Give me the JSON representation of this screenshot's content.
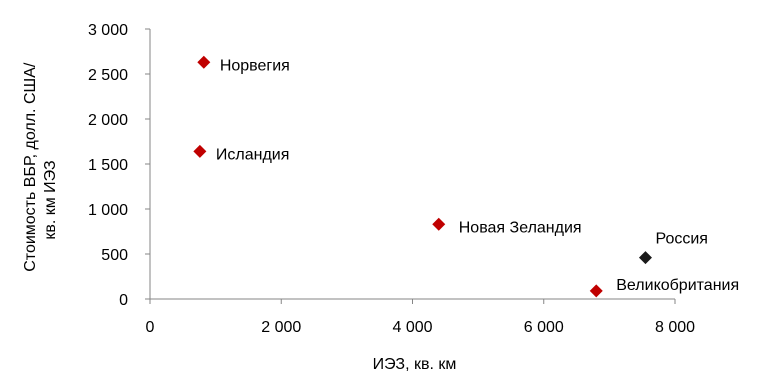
{
  "chart_data": {
    "type": "scatter",
    "xlabel": "ИЭЗ, кв. км",
    "ylabel_lines": [
      "Стоимость ВБР, долл. США/",
      "кв. км ИЭЗ"
    ],
    "xlim": [
      0,
      8000
    ],
    "ylim": [
      0,
      3000
    ],
    "x_ticks": [
      0,
      2000,
      4000,
      6000,
      8000
    ],
    "x_tick_labels": [
      "0",
      "2 000",
      "4 000",
      "6 000",
      "8 000"
    ],
    "y_ticks": [
      0,
      500,
      1000,
      1500,
      2000,
      2500,
      3000
    ],
    "y_tick_labels": [
      "0",
      "500",
      "1 000",
      "1 500",
      "2 000",
      "2 500",
      "3 000"
    ],
    "grid": false,
    "points": [
      {
        "label": "Норвегия",
        "x": 820,
        "y": 2630,
        "color": "#c00000"
      },
      {
        "label": "Исландия",
        "x": 760,
        "y": 1640,
        "color": "#c00000"
      },
      {
        "label": "Новая Зеландия",
        "x": 4400,
        "y": 830,
        "color": "#c00000"
      },
      {
        "label": "Россия",
        "x": 7550,
        "y": 460,
        "color": "#1a1a1a"
      },
      {
        "label": "Великобритания",
        "x": 6800,
        "y": 90,
        "color": "#c00000"
      }
    ]
  }
}
